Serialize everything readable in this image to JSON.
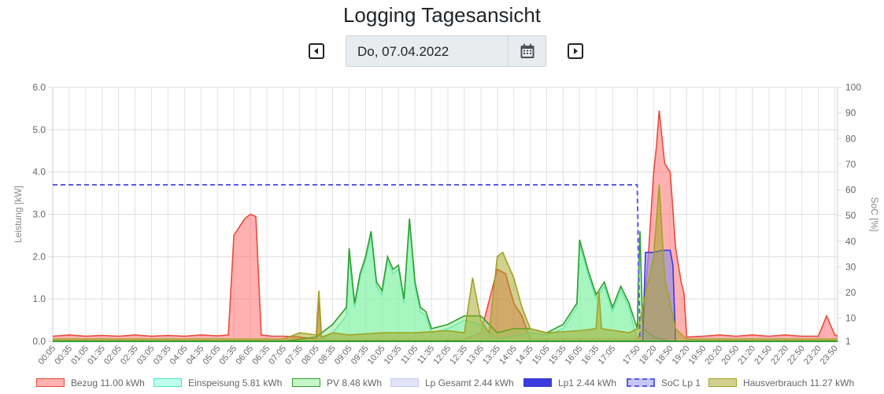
{
  "header": {
    "title": "Logging Tagesansicht"
  },
  "date_picker": {
    "date_value": "Do, 07.04.2022",
    "prev_icon": "caret-left-icon",
    "next_icon": "caret-right-icon",
    "calendar_icon": "calendar-icon"
  },
  "chart_data": {
    "type": "area",
    "xlabel": "",
    "ylabel": "Leistung [kW]",
    "y2label": "SoC [%]",
    "ylim": [
      0,
      6
    ],
    "y2lim": [
      1,
      100
    ],
    "yticks": [
      "0.0",
      "1.0",
      "2.0",
      "3.0",
      "4.0",
      "5.0",
      "6.0"
    ],
    "y2ticks": [
      "1",
      "10",
      "20",
      "30",
      "40",
      "50",
      "60",
      "70",
      "80",
      "90",
      "100"
    ],
    "xticks": [
      "00:05",
      "00:35",
      "01:05",
      "01:35",
      "02:05",
      "02:35",
      "03:05",
      "03:35",
      "04:05",
      "04:35",
      "05:05",
      "05:35",
      "06:05",
      "06:35",
      "07:05",
      "07:35",
      "08:05",
      "08:35",
      "09:05",
      "09:35",
      "10:05",
      "10:35",
      "11:05",
      "11:35",
      "12:05",
      "12:35",
      "13:05",
      "13:35",
      "14:05",
      "14:35",
      "15:05",
      "15:35",
      "16:05",
      "16:35",
      "17:05",
      "17:50",
      "18:20",
      "18:50",
      "19:20",
      "19:50",
      "20:20",
      "20:50",
      "21:20",
      "21:50",
      "22:20",
      "22:50",
      "23:20",
      "23:50"
    ],
    "grid": true,
    "legend_position": "bottom",
    "series": [
      {
        "name": "Bezug 11.00 kWh",
        "color": "#e74c3c",
        "fill": "rgba(255,99,99,0.5)",
        "axis": "y",
        "points": [
          [
            "00:05",
            0.12
          ],
          [
            "00:35",
            0.15
          ],
          [
            "01:05",
            0.12
          ],
          [
            "01:35",
            0.14
          ],
          [
            "02:05",
            0.12
          ],
          [
            "02:35",
            0.15
          ],
          [
            "03:05",
            0.12
          ],
          [
            "03:35",
            0.14
          ],
          [
            "04:05",
            0.12
          ],
          [
            "04:35",
            0.15
          ],
          [
            "05:05",
            0.13
          ],
          [
            "05:25",
            0.15
          ],
          [
            "05:35",
            2.5
          ],
          [
            "05:45",
            2.7
          ],
          [
            "05:55",
            2.9
          ],
          [
            "06:05",
            3.0
          ],
          [
            "06:15",
            2.95
          ],
          [
            "06:25",
            0.15
          ],
          [
            "06:45",
            0.12
          ],
          [
            "07:05",
            0.12
          ],
          [
            "07:35",
            0.1
          ],
          [
            "08:05",
            0.05
          ],
          [
            "08:10",
            1.0
          ],
          [
            "08:15",
            0.05
          ],
          [
            "08:35",
            0.03
          ],
          [
            "12:30",
            0.03
          ],
          [
            "13:05",
            0.2
          ],
          [
            "13:35",
            1.7
          ],
          [
            "13:50",
            1.6
          ],
          [
            "14:05",
            0.9
          ],
          [
            "14:20",
            0.6
          ],
          [
            "14:35",
            0.05
          ],
          [
            "17:50",
            0.05
          ],
          [
            "18:00",
            0.3
          ],
          [
            "18:10",
            2.0
          ],
          [
            "18:20",
            4.0
          ],
          [
            "18:25",
            4.6
          ],
          [
            "18:30",
            5.45
          ],
          [
            "18:40",
            4.2
          ],
          [
            "18:50",
            4.0
          ],
          [
            "19:00",
            2.2
          ],
          [
            "19:10",
            1.4
          ],
          [
            "19:15",
            1.15
          ],
          [
            "19:20",
            0.1
          ],
          [
            "19:50",
            0.12
          ],
          [
            "20:20",
            0.15
          ],
          [
            "20:50",
            0.12
          ],
          [
            "21:20",
            0.15
          ],
          [
            "21:50",
            0.12
          ],
          [
            "22:20",
            0.15
          ],
          [
            "22:50",
            0.12
          ],
          [
            "23:20",
            0.12
          ],
          [
            "23:35",
            0.6
          ],
          [
            "23:50",
            0.15
          ],
          [
            "23:55",
            0.12
          ]
        ]
      },
      {
        "name": "Einspeisung 5.81 kWh",
        "color": "#4ee6c8",
        "fill": "rgba(128,255,222,0.5)",
        "axis": "y",
        "points": [
          [
            "08:10",
            0.0
          ],
          [
            "08:35",
            0.2
          ],
          [
            "09:00",
            0.6
          ],
          [
            "09:05",
            2.0
          ],
          [
            "09:15",
            0.8
          ],
          [
            "09:25",
            1.5
          ],
          [
            "09:35",
            1.9
          ],
          [
            "09:45",
            2.5
          ],
          [
            "09:55",
            1.3
          ],
          [
            "10:05",
            1.1
          ],
          [
            "10:15",
            1.9
          ],
          [
            "10:25",
            1.6
          ],
          [
            "10:35",
            1.7
          ],
          [
            "10:45",
            0.9
          ],
          [
            "10:55",
            2.8
          ],
          [
            "11:05",
            1.3
          ],
          [
            "11:15",
            0.7
          ],
          [
            "11:25",
            0.6
          ],
          [
            "11:35",
            0.2
          ],
          [
            "12:05",
            0.3
          ],
          [
            "12:35",
            0.5
          ],
          [
            "13:05",
            0.4
          ],
          [
            "13:35",
            0.05
          ],
          [
            "14:35",
            0.2
          ],
          [
            "15:05",
            0.15
          ],
          [
            "15:35",
            0.3
          ],
          [
            "16:00",
            0.8
          ],
          [
            "16:05",
            2.3
          ],
          [
            "16:20",
            1.6
          ],
          [
            "16:35",
            1.0
          ],
          [
            "16:50",
            1.3
          ],
          [
            "17:05",
            0.7
          ],
          [
            "17:20",
            1.2
          ],
          [
            "17:35",
            0.8
          ],
          [
            "17:50",
            0.0
          ]
        ]
      },
      {
        "name": "PV 8.48 kWh",
        "color": "#2e9e2e",
        "fill": "rgba(144,238,144,0.5)",
        "axis": "y",
        "points": [
          [
            "07:05",
            0.0
          ],
          [
            "07:35",
            0.05
          ],
          [
            "08:05",
            0.1
          ],
          [
            "08:35",
            0.4
          ],
          [
            "09:00",
            0.8
          ],
          [
            "09:05",
            2.2
          ],
          [
            "09:15",
            0.9
          ],
          [
            "09:25",
            1.6
          ],
          [
            "09:35",
            2.0
          ],
          [
            "09:45",
            2.6
          ],
          [
            "09:55",
            1.4
          ],
          [
            "10:05",
            1.2
          ],
          [
            "10:15",
            2.0
          ],
          [
            "10:25",
            1.7
          ],
          [
            "10:35",
            1.8
          ],
          [
            "10:45",
            1.0
          ],
          [
            "10:55",
            2.9
          ],
          [
            "11:05",
            1.4
          ],
          [
            "11:15",
            0.8
          ],
          [
            "11:25",
            0.7
          ],
          [
            "11:35",
            0.3
          ],
          [
            "12:05",
            0.4
          ],
          [
            "12:35",
            0.6
          ],
          [
            "13:05",
            0.6
          ],
          [
            "13:35",
            0.2
          ],
          [
            "14:05",
            0.3
          ],
          [
            "14:35",
            0.3
          ],
          [
            "15:05",
            0.2
          ],
          [
            "15:35",
            0.4
          ],
          [
            "16:00",
            0.9
          ],
          [
            "16:05",
            2.4
          ],
          [
            "16:20",
            1.7
          ],
          [
            "16:35",
            1.1
          ],
          [
            "16:50",
            1.4
          ],
          [
            "17:05",
            0.8
          ],
          [
            "17:20",
            1.3
          ],
          [
            "17:35",
            0.9
          ],
          [
            "17:50",
            0.3
          ],
          [
            "17:55",
            2.6
          ],
          [
            "18:00",
            0.3
          ],
          [
            "18:20",
            0.1
          ],
          [
            "18:50",
            0.0
          ]
        ]
      },
      {
        "name": "Lp Gesamt 2.44 kWh",
        "color": "#c8c8f0",
        "fill": "rgba(200,200,240,0.5)",
        "axis": "y",
        "points": [
          [
            "18:00",
            0.0
          ],
          [
            "18:05",
            2.1
          ],
          [
            "18:20",
            2.1
          ],
          [
            "18:35",
            2.15
          ],
          [
            "18:50",
            2.15
          ],
          [
            "18:55",
            1.8
          ],
          [
            "19:00",
            0.0
          ]
        ]
      },
      {
        "name": "Lp1 2.44 kWh",
        "color": "#3b3bdb",
        "fill": "rgba(59,59,219,0.25)",
        "axis": "y",
        "points": [
          [
            "18:00",
            0.0
          ],
          [
            "18:05",
            2.1
          ],
          [
            "18:20",
            2.1
          ],
          [
            "18:35",
            2.15
          ],
          [
            "18:50",
            2.15
          ],
          [
            "18:55",
            1.8
          ],
          [
            "19:00",
            0.0
          ]
        ]
      },
      {
        "name": "SoC Lp 1",
        "color": "#5b5be8",
        "fill": "none",
        "dashed": true,
        "axis": "y2",
        "points": [
          [
            "00:05",
            62
          ],
          [
            "17:50",
            62
          ],
          [
            "17:55",
            1
          ],
          [
            "23:55",
            1
          ]
        ]
      },
      {
        "name": "Hausverbrauch 11.27 kWh",
        "color": "#a3a322",
        "fill": "rgba(163,163,34,0.5)",
        "axis": "y",
        "points": [
          [
            "00:05",
            0.05
          ],
          [
            "07:05",
            0.05
          ],
          [
            "07:35",
            0.2
          ],
          [
            "08:05",
            0.15
          ],
          [
            "08:10",
            1.2
          ],
          [
            "08:15",
            0.1
          ],
          [
            "08:35",
            0.2
          ],
          [
            "09:05",
            0.15
          ],
          [
            "10:05",
            0.2
          ],
          [
            "11:05",
            0.2
          ],
          [
            "12:05",
            0.25
          ],
          [
            "12:35",
            0.2
          ],
          [
            "12:50",
            1.5
          ],
          [
            "13:05",
            0.5
          ],
          [
            "13:20",
            0.2
          ],
          [
            "13:35",
            2.0
          ],
          [
            "13:45",
            2.1
          ],
          [
            "14:05",
            1.5
          ],
          [
            "14:20",
            0.8
          ],
          [
            "14:35",
            0.3
          ],
          [
            "15:05",
            0.2
          ],
          [
            "16:05",
            0.25
          ],
          [
            "16:35",
            0.3
          ],
          [
            "16:40",
            1.2
          ],
          [
            "16:45",
            0.3
          ],
          [
            "17:35",
            0.2
          ],
          [
            "17:50",
            0.3
          ],
          [
            "17:55",
            0.5
          ],
          [
            "18:20",
            2.0
          ],
          [
            "18:30",
            3.7
          ],
          [
            "18:40",
            1.5
          ],
          [
            "18:50",
            0.9
          ],
          [
            "19:00",
            0.3
          ],
          [
            "19:20",
            0.05
          ],
          [
            "23:55",
            0.05
          ]
        ]
      }
    ]
  }
}
